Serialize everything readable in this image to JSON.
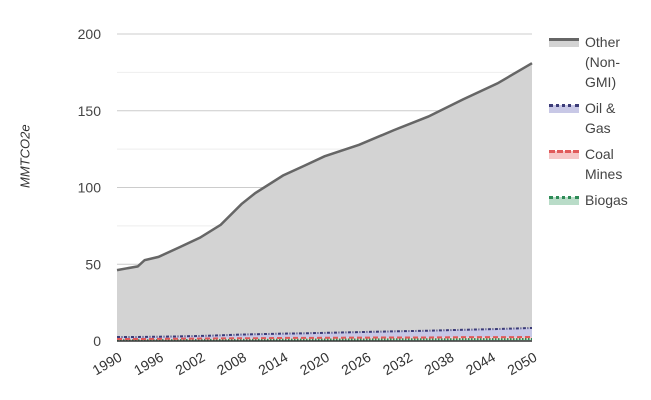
{
  "chart_data": {
    "type": "area",
    "title": "",
    "xlabel": "",
    "ylabel": "MMTCO2e",
    "ylim": [
      0,
      200
    ],
    "xlim": [
      1990,
      2050
    ],
    "yticks": [
      0,
      50,
      100,
      150,
      200
    ],
    "minor_gridlines": [
      25,
      75,
      125,
      175
    ],
    "xticks": [
      1990,
      1996,
      2002,
      2008,
      2014,
      2020,
      2026,
      2032,
      2038,
      2044,
      2050
    ],
    "grid": true,
    "legend_position": "right",
    "x": [
      1990,
      1993,
      1994,
      1996,
      1999,
      2002,
      2005,
      2008,
      2010,
      2014,
      2017,
      2020,
      2025,
      2030,
      2035,
      2040,
      2045,
      2050
    ],
    "series": [
      {
        "name": "Biogas",
        "color": "#2e8b57",
        "fill": "#b9dcc8",
        "style": "dotted",
        "values": [
          0.5,
          0.5,
          0.5,
          0.6,
          0.6,
          0.7,
          0.7,
          0.8,
          0.8,
          0.9,
          0.9,
          1.0,
          1.0,
          1.1,
          1.1,
          1.2,
          1.2,
          1.3
        ]
      },
      {
        "name": "Coal Mines",
        "color": "#e05a5a",
        "fill": "#f6c6c6",
        "style": "dashed",
        "values": [
          0.8,
          0.8,
          0.8,
          0.8,
          0.9,
          0.9,
          1.0,
          1.0,
          1.0,
          1.1,
          1.1,
          1.1,
          1.2,
          1.2,
          1.2,
          1.3,
          1.3,
          1.3
        ]
      },
      {
        "name": "Oil & Gas",
        "color": "#3c3c78",
        "fill": "#c8c8e6",
        "style": "dash-dot",
        "values": [
          1.3,
          1.3,
          1.4,
          1.4,
          1.5,
          1.7,
          2.0,
          2.4,
          2.6,
          2.8,
          3.0,
          3.2,
          3.6,
          4.0,
          4.4,
          4.8,
          5.3,
          5.9
        ]
      },
      {
        "name": "Other (Non-GMI)",
        "color": "#666666",
        "fill": "#d3d3d3",
        "style": "solid",
        "values": [
          43.6,
          46.0,
          50.0,
          52.0,
          58.0,
          64.0,
          72.0,
          85.0,
          92.0,
          103.0,
          109.0,
          115.0,
          122.0,
          131.0,
          139.5,
          150.0,
          160.0,
          172.5
        ]
      }
    ]
  },
  "legend": {
    "items": [
      {
        "label": "Other (Non-GMI)",
        "line": "#666666",
        "fill": "#d3d3d3",
        "style": "solid"
      },
      {
        "label": "Oil & Gas",
        "line": "#3c3c78",
        "fill": "#c8c8e6",
        "style": "dash-dot"
      },
      {
        "label": "Coal Mines",
        "line": "#e05a5a",
        "fill": "#f6c6c6",
        "style": "dashed"
      },
      {
        "label": "Biogas",
        "line": "#2e8b57",
        "fill": "#b9dcc8",
        "style": "dotted"
      }
    ]
  },
  "axis": {
    "ylabel": "MMTCO2e"
  }
}
